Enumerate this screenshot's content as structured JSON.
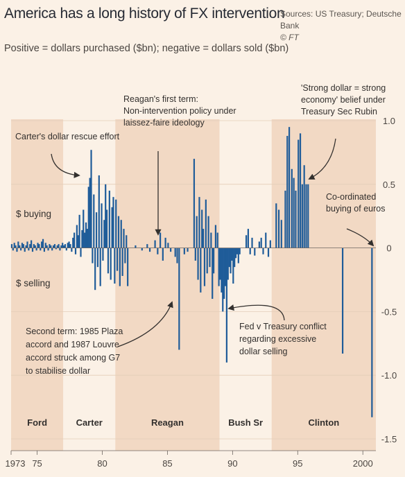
{
  "header": {
    "title": "America has a long history of FX intervention",
    "subtitle": "Positive = dollars purchased ($bn); negative = dollars sold ($bn)",
    "source_line1": "Sources: US Treasury; Deutsche Bank",
    "source_line2": "© FT"
  },
  "chart_data": {
    "type": "bar",
    "title": "America has a long history of FX intervention",
    "subtitle": "Positive = dollars purchased ($bn); negative = dollars sold ($bn)",
    "xlabel": "",
    "ylabel": "",
    "xlim": [
      1973,
      2001
    ],
    "ylim": [
      -1.5,
      1.0
    ],
    "x_ticks": [
      {
        "value": 1973,
        "label": "1973"
      },
      {
        "value": 1975,
        "label": "75"
      },
      {
        "value": 1980,
        "label": "80"
      },
      {
        "value": 1985,
        "label": "85"
      },
      {
        "value": 1990,
        "label": "90"
      },
      {
        "value": 1995,
        "label": "95"
      },
      {
        "value": 2000,
        "label": "2000"
      }
    ],
    "y_ticks": [
      {
        "value": 1.0,
        "label": "1.0"
      },
      {
        "value": 0.5,
        "label": "0.5"
      },
      {
        "value": 0,
        "label": "0"
      },
      {
        "value": -0.5,
        "label": "-0.5"
      },
      {
        "value": -1.0,
        "label": "-1.0"
      },
      {
        "value": -1.5,
        "label": "-1.5"
      }
    ],
    "side_labels": {
      "buying": "$ buying",
      "selling": "$ selling"
    },
    "bar_color": "#1f5c99",
    "bars": [
      {
        "x": 1973.05,
        "y": 0.03
      },
      {
        "x": 1973.15,
        "y": -0.02
      },
      {
        "x": 1973.25,
        "y": 0.04
      },
      {
        "x": 1973.35,
        "y": 0.02
      },
      {
        "x": 1973.45,
        "y": -0.03
      },
      {
        "x": 1973.55,
        "y": 0.05
      },
      {
        "x": 1973.65,
        "y": 0.02
      },
      {
        "x": 1973.75,
        "y": -0.02
      },
      {
        "x": 1973.85,
        "y": 0.04
      },
      {
        "x": 1973.95,
        "y": 0.03
      },
      {
        "x": 1974.05,
        "y": -0.03
      },
      {
        "x": 1974.15,
        "y": 0.02
      },
      {
        "x": 1974.25,
        "y": 0.05
      },
      {
        "x": 1974.35,
        "y": -0.02
      },
      {
        "x": 1974.45,
        "y": 0.03
      },
      {
        "x": 1974.55,
        "y": 0.06
      },
      {
        "x": 1974.65,
        "y": -0.03
      },
      {
        "x": 1974.75,
        "y": 0.03
      },
      {
        "x": 1974.85,
        "y": 0.02
      },
      {
        "x": 1974.95,
        "y": -0.02
      },
      {
        "x": 1975.05,
        "y": 0.04
      },
      {
        "x": 1975.15,
        "y": 0.03
      },
      {
        "x": 1975.25,
        "y": -0.02
      },
      {
        "x": 1975.35,
        "y": 0.05
      },
      {
        "x": 1975.45,
        "y": 0.07
      },
      {
        "x": 1975.55,
        "y": -0.03
      },
      {
        "x": 1975.65,
        "y": 0.04
      },
      {
        "x": 1975.75,
        "y": 0.02
      },
      {
        "x": 1975.85,
        "y": -0.02
      },
      {
        "x": 1975.95,
        "y": 0.03
      },
      {
        "x": 1976.05,
        "y": 0.02
      },
      {
        "x": 1976.15,
        "y": -0.02
      },
      {
        "x": 1976.25,
        "y": 0.02
      },
      {
        "x": 1976.35,
        "y": 0.03
      },
      {
        "x": 1976.45,
        "y": -0.01
      },
      {
        "x": 1976.55,
        "y": 0.02
      },
      {
        "x": 1976.65,
        "y": 0.03
      },
      {
        "x": 1976.75,
        "y": -0.02
      },
      {
        "x": 1976.85,
        "y": 0.02
      },
      {
        "x": 1976.95,
        "y": 0.04
      },
      {
        "x": 1977.05,
        "y": 0.02
      },
      {
        "x": 1977.15,
        "y": 0.03
      },
      {
        "x": 1977.25,
        "y": -0.02
      },
      {
        "x": 1977.35,
        "y": 0.04
      },
      {
        "x": 1977.45,
        "y": 0.05
      },
      {
        "x": 1977.55,
        "y": 0.03
      },
      {
        "x": 1977.65,
        "y": -0.03
      },
      {
        "x": 1977.75,
        "y": 0.08
      },
      {
        "x": 1977.85,
        "y": 0.12
      },
      {
        "x": 1977.95,
        "y": -0.05
      },
      {
        "x": 1978.05,
        "y": 0.18
      },
      {
        "x": 1978.15,
        "y": 0.1
      },
      {
        "x": 1978.25,
        "y": 0.26
      },
      {
        "x": 1978.35,
        "y": -0.07
      },
      {
        "x": 1978.45,
        "y": 0.14
      },
      {
        "x": 1978.55,
        "y": 0.3
      },
      {
        "x": 1978.65,
        "y": 0.12
      },
      {
        "x": 1978.75,
        "y": 0.2
      },
      {
        "x": 1978.85,
        "y": 0.15
      },
      {
        "x": 1978.95,
        "y": 0.48
      },
      {
        "x": 1979.05,
        "y": 0.55
      },
      {
        "x": 1979.15,
        "y": 0.77
      },
      {
        "x": 1979.25,
        "y": -0.12
      },
      {
        "x": 1979.35,
        "y": 0.42
      },
      {
        "x": 1979.45,
        "y": -0.33
      },
      {
        "x": 1979.55,
        "y": 0.28
      },
      {
        "x": 1979.65,
        "y": -0.15
      },
      {
        "x": 1979.75,
        "y": 0.57
      },
      {
        "x": 1979.85,
        "y": -0.3
      },
      {
        "x": 1979.95,
        "y": 0.35
      },
      {
        "x": 1980.05,
        "y": -0.1
      },
      {
        "x": 1980.15,
        "y": 0.22
      },
      {
        "x": 1980.25,
        "y": 0.5
      },
      {
        "x": 1980.35,
        "y": 0.3
      },
      {
        "x": 1980.45,
        "y": -0.2
      },
      {
        "x": 1980.55,
        "y": 0.45
      },
      {
        "x": 1980.65,
        "y": -0.25
      },
      {
        "x": 1980.75,
        "y": 0.32
      },
      {
        "x": 1980.85,
        "y": 0.4
      },
      {
        "x": 1980.95,
        "y": -0.28
      },
      {
        "x": 1981.05,
        "y": 0.38
      },
      {
        "x": 1981.15,
        "y": -0.18
      },
      {
        "x": 1981.25,
        "y": 0.25
      },
      {
        "x": 1981.35,
        "y": -0.3
      },
      {
        "x": 1981.45,
        "y": 0.22
      },
      {
        "x": 1981.55,
        "y": -0.22
      },
      {
        "x": 1981.65,
        "y": 0.15
      },
      {
        "x": 1981.75,
        "y": -0.12
      },
      {
        "x": 1981.85,
        "y": 0.1
      },
      {
        "x": 1981.95,
        "y": -0.3
      },
      {
        "x": 1982.55,
        "y": 0.02
      },
      {
        "x": 1983.05,
        "y": -0.02
      },
      {
        "x": 1983.45,
        "y": 0.03
      },
      {
        "x": 1983.65,
        "y": -0.03
      },
      {
        "x": 1984.05,
        "y": 0.06
      },
      {
        "x": 1984.25,
        "y": -0.05
      },
      {
        "x": 1984.45,
        "y": 0.12
      },
      {
        "x": 1984.65,
        "y": -0.1
      },
      {
        "x": 1984.85,
        "y": 0.08
      },
      {
        "x": 1985.05,
        "y": 0.04
      },
      {
        "x": 1985.25,
        "y": -0.03
      },
      {
        "x": 1985.6,
        "y": -0.07
      },
      {
        "x": 1985.75,
        "y": -0.12
      },
      {
        "x": 1985.9,
        "y": -0.8
      },
      {
        "x": 1986.3,
        "y": -0.05
      },
      {
        "x": 1986.55,
        "y": -0.03
      },
      {
        "x": 1987.05,
        "y": 0.7
      },
      {
        "x": 1987.15,
        "y": -0.1
      },
      {
        "x": 1987.25,
        "y": 0.25
      },
      {
        "x": 1987.35,
        "y": -0.25
      },
      {
        "x": 1987.45,
        "y": 0.4
      },
      {
        "x": 1987.55,
        "y": -0.35
      },
      {
        "x": 1987.65,
        "y": 0.3
      },
      {
        "x": 1987.75,
        "y": 0.15
      },
      {
        "x": 1987.85,
        "y": -0.3
      },
      {
        "x": 1987.95,
        "y": 0.38
      },
      {
        "x": 1988.05,
        "y": -0.2
      },
      {
        "x": 1988.15,
        "y": 0.25
      },
      {
        "x": 1988.25,
        "y": -0.15
      },
      {
        "x": 1988.35,
        "y": 0.12
      },
      {
        "x": 1988.45,
        "y": -0.4
      },
      {
        "x": 1988.55,
        "y": -0.2
      },
      {
        "x": 1988.7,
        "y": 0.18
      },
      {
        "x": 1988.85,
        "y": 0.12
      },
      {
        "x": 1988.95,
        "y": -0.3
      },
      {
        "x": 1989.05,
        "y": -0.25
      },
      {
        "x": 1989.15,
        "y": -0.35
      },
      {
        "x": 1989.25,
        "y": -0.5
      },
      {
        "x": 1989.35,
        "y": -0.4
      },
      {
        "x": 1989.45,
        "y": -0.3
      },
      {
        "x": 1989.55,
        "y": -0.9
      },
      {
        "x": 1989.65,
        "y": -0.25
      },
      {
        "x": 1989.75,
        "y": -0.15
      },
      {
        "x": 1989.85,
        "y": -0.2
      },
      {
        "x": 1989.95,
        "y": -0.1
      },
      {
        "x": 1990.05,
        "y": -0.28
      },
      {
        "x": 1990.15,
        "y": -0.15
      },
      {
        "x": 1990.25,
        "y": -0.08
      },
      {
        "x": 1990.35,
        "y": -0.05
      },
      {
        "x": 1990.45,
        "y": -0.12
      },
      {
        "x": 1990.55,
        "y": -0.05
      },
      {
        "x": 1991.05,
        "y": 0.1
      },
      {
        "x": 1991.2,
        "y": 0.15
      },
      {
        "x": 1991.35,
        "y": -0.05
      },
      {
        "x": 1991.5,
        "y": 0.08
      },
      {
        "x": 1991.7,
        "y": -0.06
      },
      {
        "x": 1992.05,
        "y": 0.05
      },
      {
        "x": 1992.2,
        "y": 0.08
      },
      {
        "x": 1992.35,
        "y": -0.05
      },
      {
        "x": 1992.55,
        "y": 0.12
      },
      {
        "x": 1992.75,
        "y": -0.07
      },
      {
        "x": 1992.9,
        "y": 0.06
      },
      {
        "x": 1993.35,
        "y": 0.35
      },
      {
        "x": 1993.55,
        "y": 0.3
      },
      {
        "x": 1993.75,
        "y": 0.22
      },
      {
        "x": 1994.05,
        "y": 0.45
      },
      {
        "x": 1994.2,
        "y": 0.88
      },
      {
        "x": 1994.35,
        "y": 0.95
      },
      {
        "x": 1994.55,
        "y": 0.62
      },
      {
        "x": 1994.7,
        "y": 0.55
      },
      {
        "x": 1994.85,
        "y": 0.45
      },
      {
        "x": 1995.05,
        "y": 0.85
      },
      {
        "x": 1995.2,
        "y": 0.9
      },
      {
        "x": 1995.35,
        "y": 0.5
      },
      {
        "x": 1995.5,
        "y": 0.65
      },
      {
        "x": 1995.65,
        "y": 0.5
      },
      {
        "x": 1995.8,
        "y": 0.5
      },
      {
        "x": 1998.45,
        "y": -0.83
      },
      {
        "x": 2000.7,
        "y": -1.33
      }
    ],
    "eras": [
      {
        "label": "Ford",
        "start": 1973,
        "end": 1977
      },
      {
        "label": "Carter",
        "start": 1977,
        "end": 1981
      },
      {
        "label": "Reagan",
        "start": 1981,
        "end": 1989
      },
      {
        "label": "Bush Sr",
        "start": 1989,
        "end": 1993
      },
      {
        "label": "Clinton",
        "start": 1993,
        "end": 2001
      }
    ],
    "annotations": [
      {
        "text": "Carter's dollar rescue effort"
      },
      {
        "text": "Reagan's first term:\nNon-intervention policy under\nlaissez-faire ideology"
      },
      {
        "text": "'Strong dollar = strong\neconomy' belief under\nTreasury Sec Rubin"
      },
      {
        "text": "Co-ordinated\nbuying of euros"
      },
      {
        "text": "Second term: 1985 Plaza\naccord and 1987 Louvre\naccord struck among G7\nto stabilise dollar"
      },
      {
        "text": "Fed v Treasury conflict\nregarding excessive\ndollar selling"
      }
    ]
  }
}
